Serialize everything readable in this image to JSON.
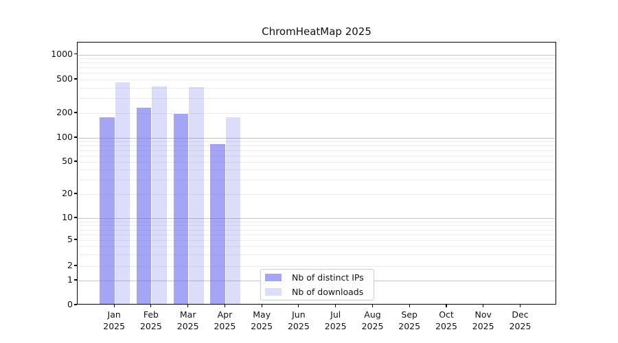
{
  "chart_data": {
    "type": "bar",
    "title": "ChromHeatMap 2025",
    "yscale": "symlog",
    "yticks": [
      0,
      1,
      2,
      5,
      10,
      20,
      50,
      100,
      200,
      500,
      1000
    ],
    "ylim": [
      0,
      1400
    ],
    "grid": true,
    "legend_position": "lower center (inside plot)",
    "x": {
      "months": [
        "Jan",
        "Feb",
        "Mar",
        "Apr",
        "May",
        "Jun",
        "Jul",
        "Aug",
        "Sep",
        "Oct",
        "Nov",
        "Dec"
      ],
      "year_label": "2025"
    },
    "series": [
      {
        "name": "Nb of distinct IPs",
        "color": "rgba(110,110,240,0.62)",
        "values": [
          170,
          225,
          190,
          81,
          null,
          null,
          null,
          null,
          null,
          null,
          null,
          null
        ]
      },
      {
        "name": "Nb of downloads",
        "color": "rgba(110,110,240,0.24)",
        "values": [
          450,
          400,
          390,
          170,
          null,
          null,
          null,
          null,
          null,
          null,
          null,
          null
        ]
      }
    ]
  }
}
